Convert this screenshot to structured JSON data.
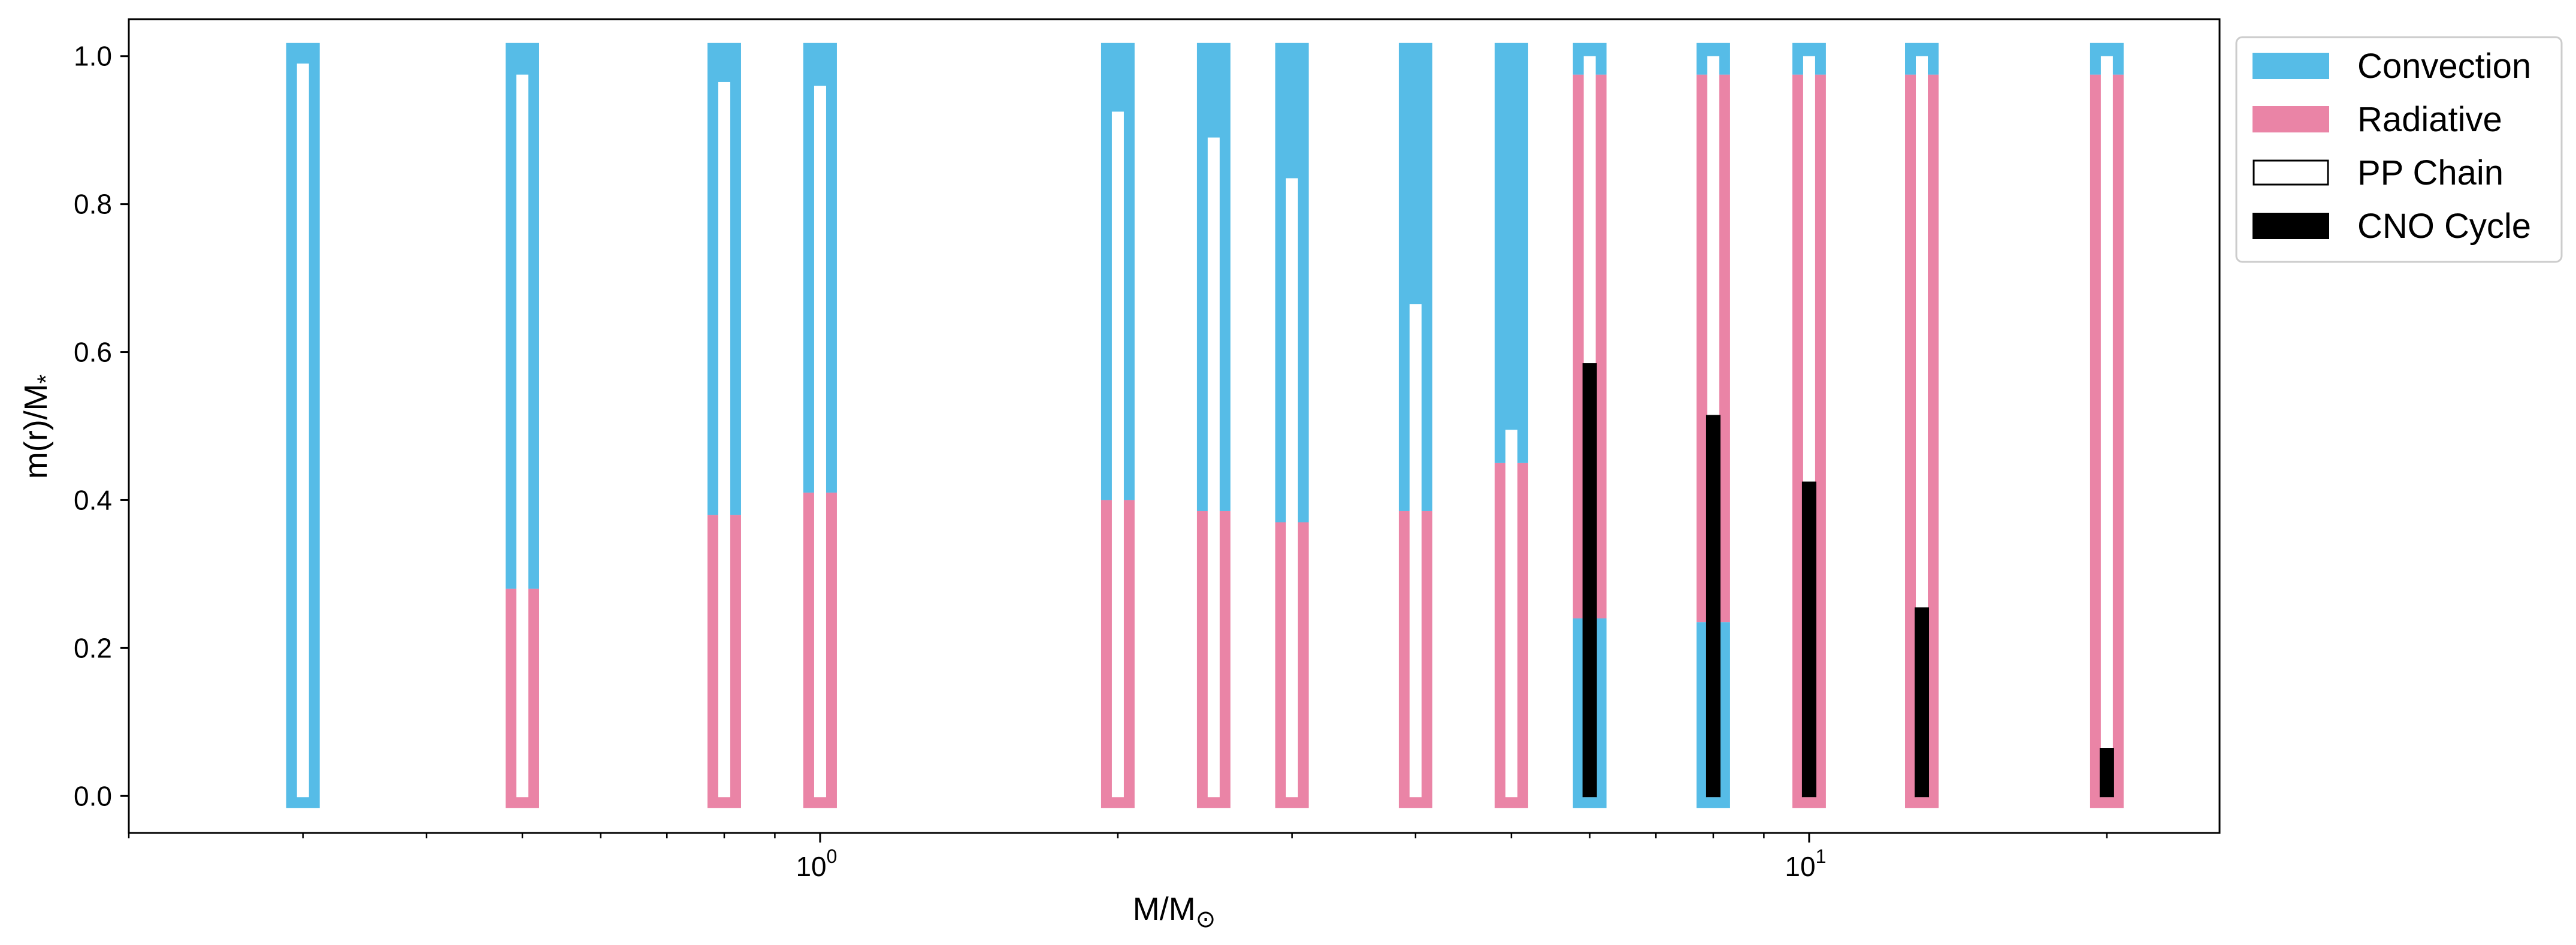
{
  "chart_data": {
    "type": "bar",
    "xlabel": "M/M",
    "xlabel_symbol": "⊙",
    "ylabel": "m(r)/M",
    "ylabel_symbol": "*",
    "xscale": "log",
    "xlim": [
      0.2,
      26
    ],
    "ylim": [
      -0.05,
      1.05
    ],
    "yticks": [
      "0.0",
      "0.2",
      "0.4",
      "0.6",
      "0.8",
      "1.0"
    ],
    "xticks": [
      {
        "base": "10",
        "exp": "0",
        "value": 1
      },
      {
        "base": "10",
        "exp": "1",
        "value": 10
      }
    ],
    "grid": false,
    "legend": {
      "placement": "outside-top-right",
      "entries": [
        {
          "key": "convection",
          "label": "Convection",
          "color": "#56BCE7",
          "style": "filled"
        },
        {
          "key": "radiative",
          "label": "Radiative",
          "color": "#EA84A6",
          "style": "filled"
        },
        {
          "key": "pp",
          "label": "PP Chain",
          "color": "#ffffff",
          "style": "outline"
        },
        {
          "key": "cno",
          "label": "CNO Cycle",
          "color": "#000000",
          "style": "filled"
        }
      ]
    },
    "colors": {
      "convection": "#56BCE7",
      "radiative": "#EA84A6",
      "pp": "#ffffff",
      "cno": "#000000"
    },
    "stars": [
      {
        "mass": 0.3,
        "zones": [
          {
            "type": "convection",
            "from": 0.0,
            "to": 1.0
          }
        ],
        "pp_top": 0.99,
        "cno_top": null
      },
      {
        "mass": 0.5,
        "zones": [
          {
            "type": "radiative",
            "from": 0.0,
            "to": 0.28
          },
          {
            "type": "convection",
            "from": 0.28,
            "to": 1.0
          }
        ],
        "pp_top": 0.975,
        "cno_top": null
      },
      {
        "mass": 0.8,
        "zones": [
          {
            "type": "radiative",
            "from": 0.0,
            "to": 0.38
          },
          {
            "type": "convection",
            "from": 0.38,
            "to": 1.0
          }
        ],
        "pp_top": 0.965,
        "cno_top": null
      },
      {
        "mass": 1.0,
        "zones": [
          {
            "type": "radiative",
            "from": 0.0,
            "to": 0.41
          },
          {
            "type": "convection",
            "from": 0.41,
            "to": 1.0
          }
        ],
        "pp_top": 0.96,
        "cno_top": null
      },
      {
        "mass": 2.0,
        "zones": [
          {
            "type": "radiative",
            "from": 0.0,
            "to": 0.4
          },
          {
            "type": "convection",
            "from": 0.4,
            "to": 1.0
          }
        ],
        "pp_top": 0.925,
        "cno_top": null
      },
      {
        "mass": 2.5,
        "zones": [
          {
            "type": "radiative",
            "from": 0.0,
            "to": 0.385
          },
          {
            "type": "convection",
            "from": 0.385,
            "to": 1.0
          }
        ],
        "pp_top": 0.89,
        "cno_top": null
      },
      {
        "mass": 3.0,
        "zones": [
          {
            "type": "radiative",
            "from": 0.0,
            "to": 0.37
          },
          {
            "type": "convection",
            "from": 0.37,
            "to": 1.0
          }
        ],
        "pp_top": 0.835,
        "cno_top": null
      },
      {
        "mass": 4.0,
        "zones": [
          {
            "type": "radiative",
            "from": 0.0,
            "to": 0.385
          },
          {
            "type": "convection",
            "from": 0.385,
            "to": 1.0
          }
        ],
        "pp_top": 0.665,
        "cno_top": null
      },
      {
        "mass": 5.0,
        "zones": [
          {
            "type": "radiative",
            "from": 0.0,
            "to": 0.45
          },
          {
            "type": "convection",
            "from": 0.45,
            "to": 1.0
          }
        ],
        "pp_top": 0.495,
        "cno_top": null
      },
      {
        "mass": 6.0,
        "zones": [
          {
            "type": "convection",
            "from": 0.0,
            "to": 0.24
          },
          {
            "type": "radiative",
            "from": 0.24,
            "to": 0.975
          },
          {
            "type": "convection",
            "from": 0.975,
            "to": 1.0
          }
        ],
        "pp_top": 1.0,
        "cno_top": 0.585
      },
      {
        "mass": 8.0,
        "zones": [
          {
            "type": "convection",
            "from": 0.0,
            "to": 0.235
          },
          {
            "type": "radiative",
            "from": 0.235,
            "to": 0.975
          },
          {
            "type": "convection",
            "from": 0.975,
            "to": 1.0
          }
        ],
        "pp_top": 1.0,
        "cno_top": 0.515
      },
      {
        "mass": 10.0,
        "zones": [
          {
            "type": "radiative",
            "from": 0.0,
            "to": 0.975
          },
          {
            "type": "convection",
            "from": 0.975,
            "to": 1.0
          }
        ],
        "pp_top": 1.0,
        "cno_top": 0.425
      },
      {
        "mass": 13.0,
        "zones": [
          {
            "type": "radiative",
            "from": 0.0,
            "to": 0.975
          },
          {
            "type": "convection",
            "from": 0.975,
            "to": 1.0
          }
        ],
        "pp_top": 1.0,
        "cno_top": 0.255
      },
      {
        "mass": 20.0,
        "zones": [
          {
            "type": "radiative",
            "from": 0.0,
            "to": 0.975
          },
          {
            "type": "convection",
            "from": 0.975,
            "to": 1.0
          }
        ],
        "pp_top": 1.0,
        "cno_top": 0.065
      }
    ]
  }
}
